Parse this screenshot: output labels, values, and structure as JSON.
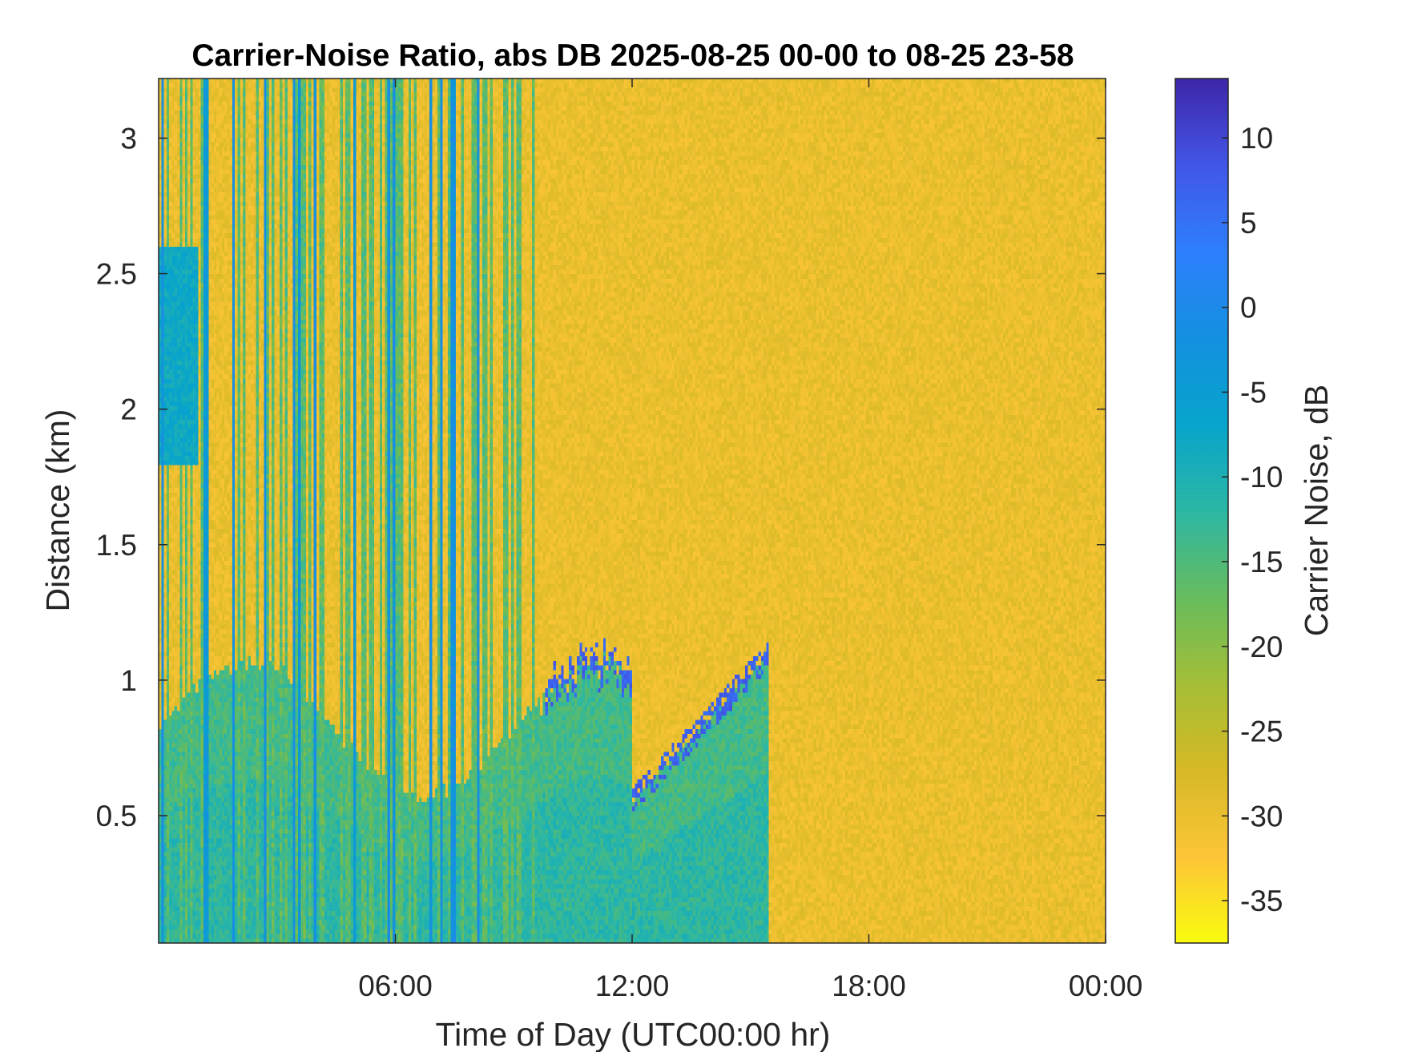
{
  "chart_data": {
    "type": "heatmap",
    "title": "Carrier-Noise Ratio, abs DB 2025-08-25 00-00 to 08-25 23-58",
    "xlabel": "Time of Day (UTC00:00 hr)",
    "ylabel": "Distance (km)",
    "colorbar_label": "Carrier Noise, dB",
    "x_unit": "hours",
    "xlim": [
      0,
      24
    ],
    "ylim": [
      0.03,
      3.22
    ],
    "clim": [
      -37.5,
      13.5
    ],
    "x_ticks": [
      {
        "value": 6,
        "label": "06:00"
      },
      {
        "value": 12,
        "label": "12:00"
      },
      {
        "value": 18,
        "label": "18:00"
      },
      {
        "value": 24,
        "label": "00:00"
      }
    ],
    "y_ticks": [
      {
        "value": 0.5,
        "label": "0.5"
      },
      {
        "value": 1,
        "label": "1"
      },
      {
        "value": 1.5,
        "label": "1.5"
      },
      {
        "value": 2,
        "label": "2"
      },
      {
        "value": 2.5,
        "label": "2.5"
      },
      {
        "value": 3,
        "label": "3"
      }
    ],
    "colorbar_ticks": [
      {
        "value": 10,
        "label": "10"
      },
      {
        "value": 5,
        "label": "5"
      },
      {
        "value": 0,
        "label": "0"
      },
      {
        "value": -5,
        "label": "-5"
      },
      {
        "value": -10,
        "label": "-10"
      },
      {
        "value": -15,
        "label": "-15"
      },
      {
        "value": -20,
        "label": "-20"
      },
      {
        "value": -25,
        "label": "-25"
      },
      {
        "value": -30,
        "label": "-30"
      },
      {
        "value": -35,
        "label": "-35"
      }
    ],
    "colormap": "parula",
    "colormap_stops": [
      "#f9fb0e",
      "#fcc538",
      "#d6b925",
      "#a4be36",
      "#66bc5d",
      "#2cb7a4",
      "#07a4cc",
      "#1490df",
      "#2d7ffd",
      "#4256e6",
      "#3e26a8"
    ],
    "background_level_db": -30,
    "features": [
      {
        "name": "low-level band",
        "t_start": 0,
        "t_end": 15.5,
        "top_km": [
          0.75,
          1.15
        ],
        "level_db": -13
      },
      {
        "name": "strong columns",
        "times": [
          1.2,
          1.5,
          1.75,
          2.5,
          3.4,
          3.6,
          4.7
        ],
        "level_db": -4
      },
      {
        "name": "boundary edge",
        "t_start": 12.5,
        "t_end": 15.4,
        "from_km": 0.6,
        "to_km": 1.1,
        "level_db": 5
      }
    ]
  }
}
